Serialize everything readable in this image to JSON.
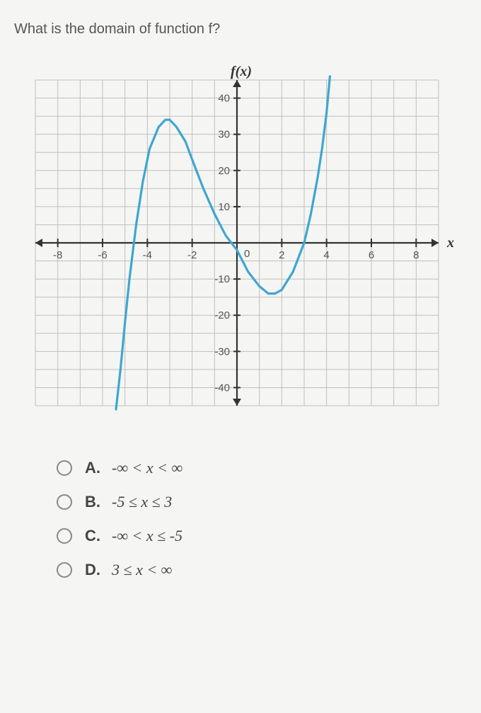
{
  "question_text": "What is the domain of function f?",
  "graph": {
    "width_svg": 620,
    "height_svg": 520,
    "x_domain": [
      -9,
      9
    ],
    "y_domain": [
      -45,
      45
    ],
    "x_ticks": [
      -8,
      -6,
      -4,
      -2,
      2,
      4,
      6,
      8
    ],
    "y_ticks_pos": [
      10,
      20,
      30,
      40
    ],
    "y_ticks_neg": [
      -10,
      -20,
      -30,
      -40
    ],
    "axis_label_y": "f(x)",
    "axis_label_x": "x",
    "grid_color": "#bfbfbf",
    "axis_color": "#333333",
    "curve_color": "#3fa6d0",
    "curve_width": 3.2,
    "tick_fontsize": 15,
    "label_fontsize": 20,
    "background": "#f5f5f3",
    "curve_samples": [
      [
        -5.4,
        -46
      ],
      [
        -5.2,
        -35
      ],
      [
        -5.0,
        -22
      ],
      [
        -4.8,
        -10
      ],
      [
        -4.5,
        5
      ],
      [
        -4.2,
        17
      ],
      [
        -3.9,
        26
      ],
      [
        -3.5,
        32
      ],
      [
        -3.2,
        34
      ],
      [
        -3.0,
        34
      ],
      [
        -2.7,
        32
      ],
      [
        -2.3,
        28
      ],
      [
        -2.0,
        23
      ],
      [
        -1.5,
        15
      ],
      [
        -1.0,
        8
      ],
      [
        -0.5,
        2
      ],
      [
        0.0,
        -2
      ],
      [
        0.5,
        -8
      ],
      [
        1.0,
        -12
      ],
      [
        1.4,
        -14
      ],
      [
        1.7,
        -14
      ],
      [
        2.0,
        -13
      ],
      [
        2.5,
        -8
      ],
      [
        3.0,
        0
      ],
      [
        3.3,
        8
      ],
      [
        3.6,
        18
      ],
      [
        3.8,
        26
      ],
      [
        4.0,
        36
      ],
      [
        4.15,
        46
      ]
    ]
  },
  "answers": [
    {
      "letter": "A.",
      "expr": "-∞ < x < ∞"
    },
    {
      "letter": "B.",
      "expr": "-5 ≤ x ≤ 3"
    },
    {
      "letter": "C.",
      "expr": "-∞ < x ≤ -5"
    },
    {
      "letter": "D.",
      "expr": "3 ≤ x < ∞"
    }
  ]
}
